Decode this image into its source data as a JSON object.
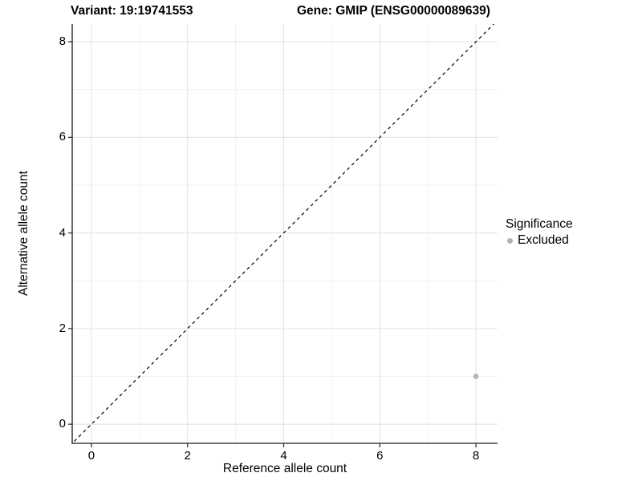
{
  "figure": {
    "background": "#ffffff"
  },
  "chart_data": {
    "type": "scatter",
    "title_left": "Variant: 19:19741553",
    "title_right": "Gene: GMIP (ENSG00000089639)",
    "xlabel": "Reference allele count",
    "ylabel": "Alternative allele count",
    "x_ticks": [
      0,
      2,
      4,
      6,
      8
    ],
    "y_ticks": [
      0,
      2,
      4,
      6,
      8
    ],
    "x_minor_ticks": [
      1,
      3,
      5,
      7
    ],
    "y_minor_ticks": [
      1,
      3,
      5,
      7
    ],
    "xlim": [
      -0.4,
      8.45
    ],
    "ylim": [
      -0.4,
      8.37
    ],
    "grid": true,
    "series": [
      {
        "name": "Excluded",
        "color": "#b3b3b3",
        "points": [
          {
            "x": 8,
            "y": 1
          }
        ]
      }
    ],
    "reference_line": {
      "equation": "y = x",
      "style": "dashed",
      "color": "#000000"
    },
    "legend": {
      "title": "Significance",
      "position": "right",
      "items": [
        {
          "label": "Excluded",
          "color": "#b3b3b3"
        }
      ]
    },
    "colors": {
      "grid_major": "#e4e4e4",
      "grid_minor": "#f1f1f1",
      "axis_line": "#404040",
      "tick_mark": "#333333",
      "text": "#000000"
    }
  }
}
